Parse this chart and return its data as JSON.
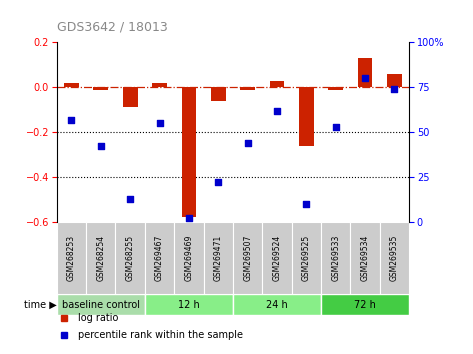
{
  "title": "GDS3642 / 18013",
  "samples": [
    "GSM268253",
    "GSM268254",
    "GSM268255",
    "GSM269467",
    "GSM269469",
    "GSM269471",
    "GSM269507",
    "GSM269524",
    "GSM269525",
    "GSM269533",
    "GSM269534",
    "GSM269535"
  ],
  "log_ratio": [
    0.02,
    -0.01,
    -0.09,
    0.02,
    -0.58,
    -0.06,
    -0.01,
    0.03,
    -0.26,
    -0.01,
    0.13,
    0.06
  ],
  "percentile_rank": [
    57,
    42,
    13,
    55,
    2,
    22,
    44,
    62,
    10,
    53,
    80,
    74
  ],
  "ylim_left": [
    -0.6,
    0.2
  ],
  "ylim_right": [
    0,
    100
  ],
  "yticks_left": [
    -0.6,
    -0.4,
    -0.2,
    0.0,
    0.2
  ],
  "yticks_right": [
    0,
    25,
    50,
    75,
    100
  ],
  "bar_color": "#cc2200",
  "square_color": "#0000cc",
  "hline_color": "#cc2200",
  "dot_color": "#000000",
  "group_colors": [
    "#aaddaa",
    "#88ee88",
    "#88ee88",
    "#44cc44"
  ],
  "group_labels": [
    "baseline control",
    "12 h",
    "24 h",
    "72 h"
  ],
  "group_starts": [
    0,
    3,
    6,
    9
  ],
  "group_ends": [
    3,
    6,
    9,
    12
  ],
  "label_col_color": "#cccccc",
  "bar_width": 0.5,
  "sq_size": 20,
  "title_color": "#888888",
  "title_fontsize": 9,
  "tick_fontsize": 7,
  "label_fontsize": 5.5
}
